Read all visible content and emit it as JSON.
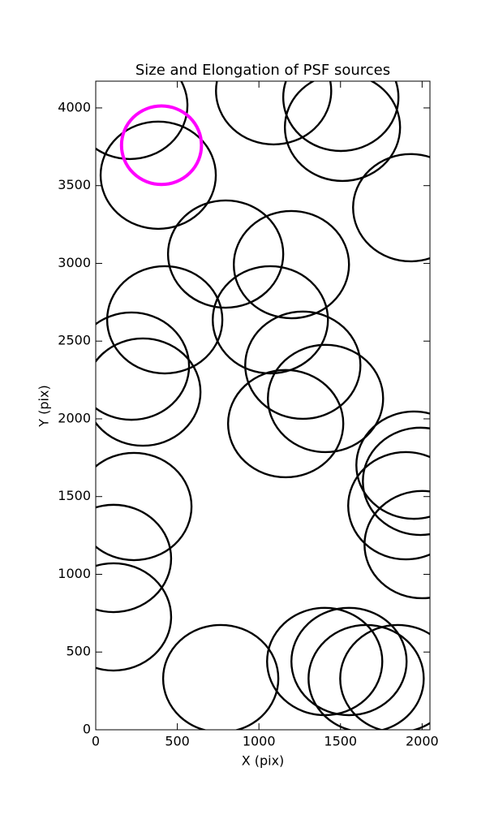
{
  "chart_data": {
    "type": "ellipse",
    "title": "Size and Elongation of PSF sources",
    "xlabel": "X (pix)",
    "ylabel": "Y (pix)",
    "xlim": [
      0,
      2048
    ],
    "ylim": [
      0,
      4172
    ],
    "xticks": [
      0,
      500,
      1000,
      1500,
      2000
    ],
    "yticks": [
      0,
      500,
      1000,
      1500,
      2000,
      2500,
      3000,
      3500,
      4000
    ],
    "series": [
      {
        "color": "#000000",
        "linewidth": 2.4,
        "x": [
          209,
          1090,
          1502,
          383,
          1512,
          1930,
          796,
          1199,
          423,
          1070,
          219,
          1269,
          289,
          1408,
          1164,
          1950,
          1990,
          234,
          1900,
          2000,
          109,
          109,
          766,
          1403,
          1552,
          1657,
          1851
        ],
        "y": [
          4016,
          4110,
          4068,
          3567,
          3875,
          3358,
          3060,
          2992,
          2637,
          2637,
          2339,
          2345,
          2172,
          2131,
          1969,
          1702,
          1598,
          1436,
          1441,
          1191,
          1102,
          726,
          329,
          439,
          439,
          329,
          329
        ],
        "width": [
          706,
          706,
          706,
          706,
          706,
          706,
          706,
          706,
          706,
          706,
          706,
          706,
          706,
          706,
          706,
          706,
          706,
          706,
          706,
          706,
          706,
          706,
          706,
          706,
          706,
          706,
          706
        ],
        "height": [
          690,
          690,
          690,
          690,
          690,
          690,
          690,
          690,
          690,
          690,
          690,
          690,
          690,
          690,
          690,
          690,
          690,
          690,
          690,
          690,
          690,
          690,
          690,
          690,
          690,
          690,
          690
        ]
      },
      {
        "color": "#ff00ff",
        "linewidth": 4,
        "x": [
          403
        ],
        "y": [
          3760
        ],
        "width": [
          490
        ],
        "height": [
          505
        ]
      }
    ]
  }
}
